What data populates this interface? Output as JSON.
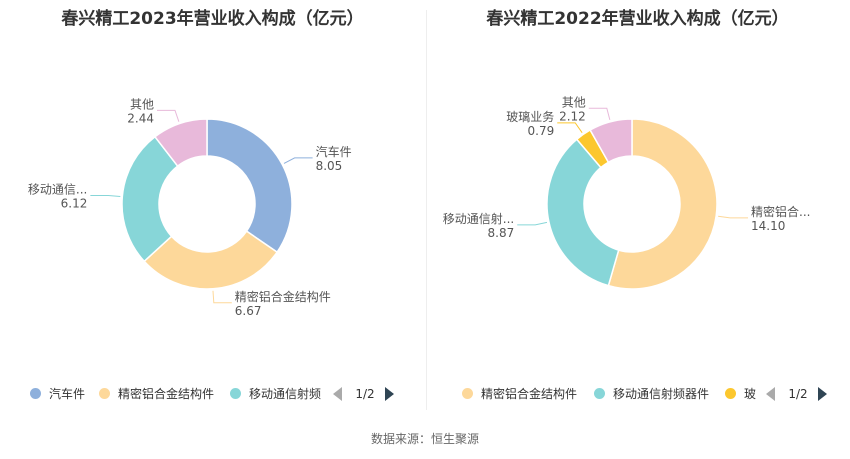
{
  "colors": {
    "汽车件": "#8eb0dc",
    "精密铝合金结构件": "#fdd89a",
    "移动通信射频器件": "#87d6d8",
    "玻璃业务": "#fcc72e",
    "其他": "#e8b9da"
  },
  "chart_data": [
    {
      "type": "pie",
      "title": "春兴精工2023年营业收入构成（亿元）",
      "slices": [
        {
          "name": "汽车件",
          "label": "汽车件",
          "value": 8.05,
          "value_text": "8.05"
        },
        {
          "name": "精密铝合金结构件",
          "label": "精密铝合金结构件",
          "value": 6.67,
          "value_text": "6.67"
        },
        {
          "name": "移动通信射频器件",
          "label": "移动通信...",
          "value": 6.12,
          "value_text": "6.12"
        },
        {
          "name": "其他",
          "label": "其他",
          "value": 2.44,
          "value_text": "2.44"
        }
      ],
      "legend": {
        "items": [
          "汽车件",
          "精密铝合金结构件",
          "移动通信射频"
        ],
        "page": "1/2"
      }
    },
    {
      "type": "pie",
      "title": "春兴精工2022年营业收入构成（亿元）",
      "slices": [
        {
          "name": "精密铝合金结构件",
          "label": "精密铝合...",
          "value": 14.1,
          "value_text": "14.10"
        },
        {
          "name": "移动通信射频器件",
          "label": "移动通信射...",
          "value": 8.87,
          "value_text": "8.87"
        },
        {
          "name": "玻璃业务",
          "label": "玻璃业务",
          "value": 0.79,
          "value_text": "0.79"
        },
        {
          "name": "其他",
          "label": "其他",
          "value": 2.12,
          "value_text": "2.12"
        }
      ],
      "legend": {
        "items": [
          "精密铝合金结构件",
          "移动通信射频器件",
          "玻"
        ],
        "page": "1/2"
      }
    }
  ],
  "footer": {
    "source": "数据来源：恒生聚源"
  }
}
